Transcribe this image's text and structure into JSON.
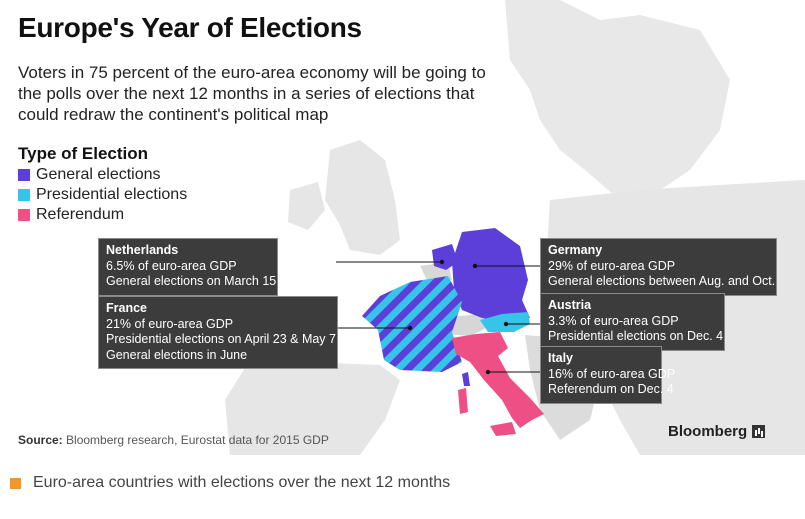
{
  "title": "Europe's Year of Elections",
  "subtitle": "Voters in 75 percent of the euro-area economy will be going to the polls over the next 12 months in a series of elections that could redraw the continent's political map",
  "legend": {
    "title": "Type of Election",
    "items": [
      {
        "label": "General elections",
        "color": "#5b3fd8"
      },
      {
        "label": "Presidential elections",
        "color": "#36c4e8"
      },
      {
        "label": "Referendum",
        "color": "#ee4f84"
      }
    ]
  },
  "callouts": {
    "netherlands": {
      "name": "Netherlands",
      "gdp": "6.5% of euro-area GDP",
      "line1": "General elections on March 15"
    },
    "france": {
      "name": "France",
      "gdp": "21% of euro-area GDP",
      "line1": "Presidential elections on April 23 & May 7",
      "line2": "General elections in June"
    },
    "germany": {
      "name": "Germany",
      "gdp": "29% of euro-area GDP",
      "line1": "General elections between Aug. and Oct."
    },
    "austria": {
      "name": "Austria",
      "gdp": "3.3% of euro-area GDP",
      "line1": "Presidential elections on Dec. 4"
    },
    "italy": {
      "name": "Italy",
      "gdp": "16% of euro-area GDP",
      "line1": "Referendum on Dec. 4"
    }
  },
  "source_label": "Source:",
  "source_text": "Bloomberg research, Eurostat data for 2015 GDP",
  "brand": "Bloomberg",
  "caption": "Euro-area countries with elections over the next 12 months",
  "colors": {
    "land": "#e6e6e6",
    "callout_bg": "#3c3c3c",
    "caption_mark": "#f29727"
  }
}
